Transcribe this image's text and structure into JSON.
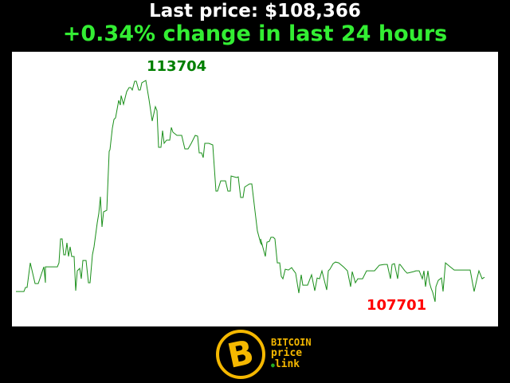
{
  "header": {
    "last_price": "Last price: $108,366",
    "change": "+0.34% change in last 24 hours"
  },
  "colors": {
    "line": "#1a8f1a",
    "max_label": "#007f00",
    "min_label": "#ff0000",
    "change_text": "#33ee33",
    "logo": "#f5b800"
  },
  "logo": {
    "line1": "BITCOIN",
    "line2": "price",
    "line3": "link",
    "icon": "bitcoin-icon"
  },
  "chart_data": {
    "type": "line",
    "title": "",
    "xlabel": "",
    "ylabel": "",
    "ylim": [
      107701,
      113704
    ],
    "grid": false,
    "max_label": "113704",
    "min_label": "107701",
    "values": [
      107980,
      107980,
      108090,
      108090,
      108758,
      108196,
      108196,
      108196,
      108650,
      108218,
      108650,
      108650,
      108650,
      108758,
      109406,
      109406,
      108974,
      108974,
      109298,
      108930,
      109190,
      108930,
      108930,
      108002,
      108542,
      108606,
      108326,
      108822,
      108822,
      108218,
      108218,
      108974,
      109190,
      109838,
      110097,
      110550,
      109730,
      110140,
      110183,
      111782,
      111825,
      112408,
      112646,
      112689,
      113164,
      113034,
      113294,
      113056,
      113402,
      113510,
      113510,
      113445,
      113682,
      113682,
      113445,
      113445,
      113639,
      113704,
      113186,
      112602,
      112991,
      112883,
      111890,
      111890,
      112343,
      111998,
      112084,
      112084,
      112430,
      112300,
      112214,
      112214,
      111846,
      111846,
      111998,
      112214,
      112192,
      111738,
      111738,
      111609,
      111998,
      111998,
      111954,
      110702,
      110702,
      110982,
      110982,
      110702,
      110702,
      111112,
      111069,
      111090,
      110529,
      110529,
      110810,
      110896,
      110896,
      110162,
      109622,
      109298,
      109233,
      109406,
      108930,
      109319,
      109341,
      109449,
      109449,
      109406,
      108758,
      108758,
      108390,
      108326,
      108585,
      108563,
      108628,
      108563,
      108477,
      107937,
      108434,
      108153,
      108153,
      108153,
      108434,
      108002,
      108347,
      108326,
      108542,
      108023,
      108542,
      108585,
      108736,
      108779,
      108758,
      108650,
      108542,
      108110,
      108520,
      108218,
      108326,
      108326,
      108542,
      108542,
      108542,
      108693,
      108714,
      108714,
      108326,
      108714,
      108736,
      108326,
      108714,
      108714,
      108542,
      108477,
      108498,
      108520,
      108542,
      108542,
      108326,
      108542,
      108110,
      108542,
      108218,
      108066,
      107958,
      107701,
      108110,
      108282,
      108347,
      107980,
      108758,
      108650,
      108563,
      108563,
      108563,
      107980,
      108369,
      108542,
      108326,
      108366
    ]
  }
}
